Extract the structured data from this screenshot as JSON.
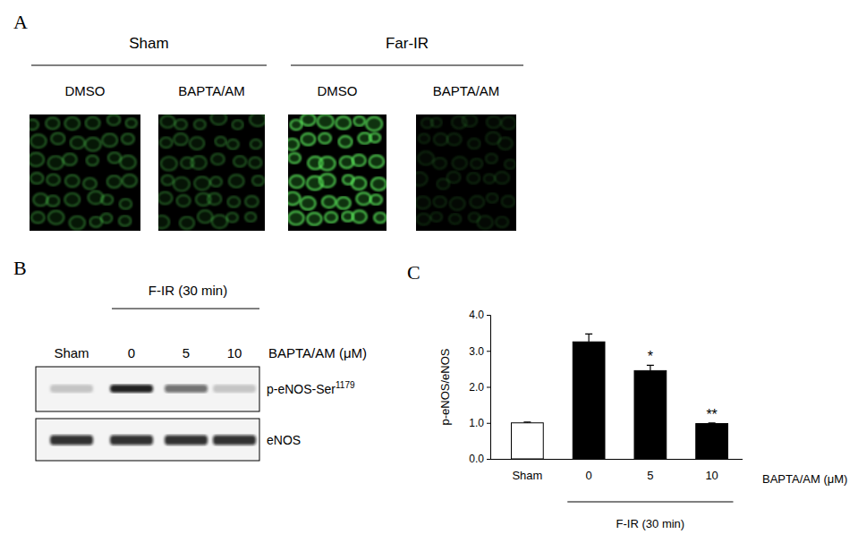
{
  "panels": {
    "A": {
      "label": "A",
      "groups": [
        {
          "title": "Sham",
          "lanes": [
            "DMSO",
            "BAPTA/AM"
          ]
        },
        {
          "title": "Far-IR",
          "lanes": [
            "DMSO",
            "BAPTA/AM"
          ]
        }
      ]
    },
    "B": {
      "label": "B",
      "header": "F-IR (30 min)",
      "lanes": [
        "Sham",
        "0",
        "5",
        "10"
      ],
      "lane_title": "BAPTA/AM (μM)",
      "rows": [
        {
          "name": "p-eNOS-Ser",
          "superscript": "1179"
        },
        {
          "name": "eNOS"
        }
      ]
    },
    "C": {
      "label": "C"
    }
  },
  "chart_data": {
    "type": "bar",
    "categories": [
      "Sham",
      "0",
      "5",
      "10"
    ],
    "values": [
      1.0,
      3.25,
      2.45,
      0.98
    ],
    "errors": [
      0.02,
      0.22,
      0.15,
      0.02
    ],
    "colors": [
      "#ffffff",
      "#000000",
      "#000000",
      "#000000"
    ],
    "y_label": "p-eNOS/eNOS",
    "x_label": "BAPTA/AM  (μM)",
    "group_label": {
      "text": "F-IR (30 min)",
      "categories": [
        "0",
        "5",
        "10"
      ]
    },
    "annotations": [
      {
        "category": "5",
        "text": "*"
      },
      {
        "category": "10",
        "text": "**"
      }
    ],
    "ylim": [
      0,
      4
    ],
    "yticks": [
      {
        "value": 0,
        "label": "0.0"
      },
      {
        "value": 1,
        "label": "1.0"
      },
      {
        "value": 2,
        "label": "2.0"
      },
      {
        "value": 3,
        "label": "3.0"
      },
      {
        "value": 4,
        "label": "4.0"
      }
    ],
    "grid": false
  }
}
